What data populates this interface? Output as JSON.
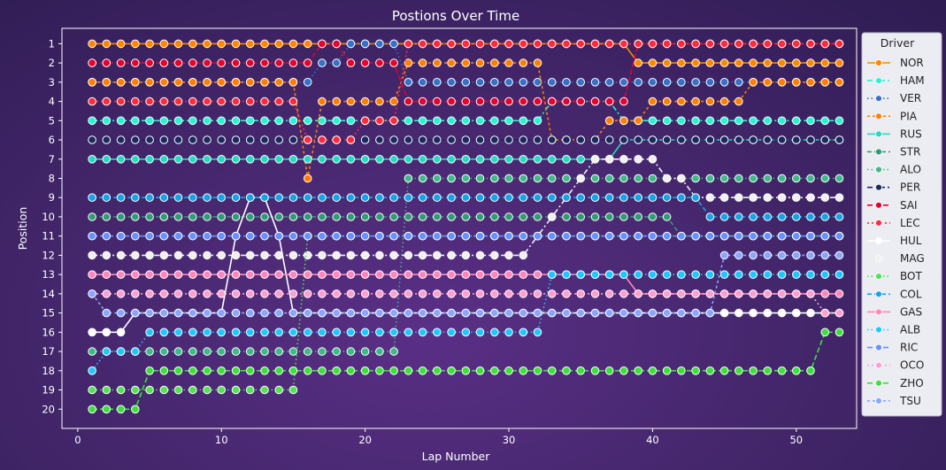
{
  "chart_data": {
    "type": "line",
    "title": "Postions Over Time",
    "xlabel": "Lap Number",
    "ylabel": "Position",
    "xlim": [
      -1.1,
      54.2
    ],
    "ylim": [
      21,
      0.2
    ],
    "y_inverted": true,
    "xticks": [
      0,
      10,
      20,
      30,
      40,
      50
    ],
    "yticks": [
      1,
      2,
      3,
      4,
      5,
      6,
      7,
      8,
      9,
      10,
      11,
      12,
      13,
      14,
      15,
      16,
      17,
      18,
      19,
      20
    ],
    "grid": false,
    "legend": {
      "title": "Driver",
      "placement": "right"
    },
    "x": [
      1,
      2,
      3,
      4,
      5,
      6,
      7,
      8,
      9,
      10,
      11,
      12,
      13,
      14,
      15,
      16,
      17,
      18,
      19,
      20,
      21,
      22,
      23,
      24,
      25,
      26,
      27,
      28,
      29,
      30,
      31,
      32,
      33,
      34,
      35,
      36,
      37,
      38,
      39,
      40,
      41,
      42,
      43,
      44,
      45,
      46,
      47,
      48,
      49,
      50,
      51,
      52,
      53
    ],
    "series": [
      {
        "name": "NOR",
        "color": "#ff8700",
        "dash": "solid",
        "values": [
          1,
          1,
          1,
          1,
          1,
          1,
          1,
          1,
          1,
          1,
          1,
          1,
          1,
          1,
          1,
          1,
          1,
          1,
          1,
          1,
          1,
          1,
          1,
          1,
          1,
          1,
          1,
          1,
          1,
          1,
          1,
          1,
          1,
          1,
          1,
          1,
          1,
          1,
          2,
          2,
          2,
          2,
          2,
          2,
          2,
          2,
          2,
          2,
          2,
          2,
          2,
          2,
          2
        ]
      },
      {
        "name": "HAM",
        "color": "#27f4d2",
        "dash": "6,3,2,3",
        "values": [
          5,
          5,
          5,
          5,
          5,
          5,
          5,
          5,
          5,
          5,
          5,
          5,
          5,
          5,
          5,
          5,
          5,
          5,
          5,
          5,
          5,
          5,
          5,
          5,
          5,
          5,
          5,
          5,
          5,
          5,
          5,
          5,
          4,
          4,
          4,
          4,
          4,
          5,
          5,
          5,
          5,
          5,
          5,
          5,
          5,
          5,
          5,
          5,
          5,
          5,
          5,
          5,
          5
        ]
      },
      {
        "name": "VER",
        "color": "#3671c6",
        "dash": "1.5,3",
        "values": [
          3,
          3,
          3,
          3,
          3,
          3,
          3,
          3,
          3,
          3,
          3,
          3,
          3,
          3,
          3,
          3,
          2,
          2,
          1,
          1,
          1,
          1,
          3,
          3,
          3,
          3,
          3,
          3,
          3,
          3,
          3,
          3,
          3,
          3,
          3,
          3,
          3,
          3,
          3,
          3,
          3,
          3,
          3,
          3,
          3,
          3,
          3,
          3,
          3,
          3,
          3,
          3,
          3
        ]
      },
      {
        "name": "PIA",
        "color": "#ff8000",
        "dash": "3,3",
        "values": [
          3,
          3,
          3,
          3,
          3,
          3,
          3,
          3,
          3,
          3,
          3,
          3,
          3,
          3,
          3,
          8,
          4,
          4,
          4,
          4,
          4,
          4,
          2,
          2,
          2,
          2,
          2,
          2,
          2,
          2,
          2,
          2,
          6,
          6,
          6,
          6,
          5,
          5,
          5,
          4,
          4,
          4,
          4,
          4,
          4,
          4,
          3,
          3,
          3,
          3,
          3,
          3,
          3
        ]
      },
      {
        "name": "RUS",
        "color": "#27d9c1",
        "dash": "solid",
        "values": [
          7,
          7,
          7,
          7,
          7,
          7,
          7,
          7,
          7,
          7,
          7,
          7,
          7,
          7,
          7,
          7,
          7,
          7,
          7,
          7,
          7,
          7,
          7,
          7,
          7,
          7,
          7,
          7,
          7,
          7,
          7,
          7,
          7,
          7,
          7,
          7,
          7,
          6,
          6,
          6,
          6,
          6,
          6,
          6,
          6,
          6,
          6,
          6,
          6,
          6,
          6,
          6,
          6
        ]
      },
      {
        "name": "STR",
        "color": "#2f9c73",
        "dash": "5,3",
        "values": [
          10,
          10,
          10,
          10,
          10,
          10,
          10,
          10,
          10,
          10,
          10,
          10,
          10,
          10,
          10,
          10,
          10,
          10,
          10,
          10,
          10,
          10,
          10,
          10,
          10,
          10,
          10,
          10,
          10,
          10,
          10,
          10,
          10,
          10,
          10,
          10,
          10,
          10,
          10,
          10,
          10,
          11,
          11,
          11,
          11,
          11,
          11,
          11,
          11,
          11,
          11,
          11,
          11
        ]
      },
      {
        "name": "ALO",
        "color": "#3eba86",
        "dash": "1.5,3",
        "values": [
          17,
          17,
          17,
          17,
          17,
          17,
          17,
          17,
          17,
          17,
          17,
          17,
          17,
          17,
          17,
          17,
          17,
          17,
          17,
          17,
          17,
          17,
          8,
          8,
          8,
          8,
          8,
          8,
          8,
          8,
          8,
          8,
          8,
          8,
          8,
          8,
          8,
          8,
          8,
          8,
          8,
          8,
          8,
          8,
          8,
          8,
          8,
          8,
          8,
          8,
          8,
          8,
          8
        ]
      },
      {
        "name": "PER",
        "color": "#1b2a5e",
        "dash": "6,3,2,3",
        "values": [
          6,
          6,
          6,
          6,
          6,
          6,
          6,
          6,
          6,
          6,
          6,
          6,
          6,
          6,
          6,
          6,
          6,
          6,
          6,
          6,
          6,
          6,
          6,
          6,
          6,
          6,
          6,
          6,
          6,
          6,
          6,
          6,
          6,
          6,
          6,
          6,
          6,
          6,
          6,
          6,
          6,
          6,
          6,
          6,
          6,
          6,
          6,
          6,
          6,
          6,
          6,
          6,
          6
        ]
      },
      {
        "name": "SAI",
        "color": "#e8002d",
        "dash": "6,3",
        "values": [
          2,
          2,
          2,
          2,
          2,
          2,
          2,
          2,
          2,
          2,
          2,
          2,
          2,
          2,
          2,
          2,
          1,
          1,
          2,
          2,
          2,
          2,
          4,
          4,
          4,
          4,
          4,
          4,
          4,
          4,
          4,
          4,
          4,
          4,
          4,
          4,
          4,
          4,
          1,
          1,
          1,
          1,
          1,
          1,
          1,
          1,
          1,
          1,
          1,
          1,
          1,
          1,
          1
        ]
      },
      {
        "name": "LEC",
        "color": "#ff2b3d",
        "dash": "2,3",
        "values": [
          4,
          4,
          4,
          4,
          4,
          4,
          4,
          4,
          4,
          4,
          4,
          4,
          4,
          4,
          4,
          6,
          6,
          6,
          6,
          5,
          5,
          5,
          1,
          1,
          1,
          1,
          1,
          1,
          1,
          1,
          1,
          1,
          1,
          1,
          1,
          1,
          1,
          1,
          1,
          1,
          1,
          1,
          1,
          1,
          1,
          1,
          1,
          1,
          1,
          1,
          1,
          1,
          1
        ]
      },
      {
        "name": "HUL",
        "color": "#ffffff",
        "dash": "solid",
        "values": [
          16,
          16,
          16,
          15,
          15,
          15,
          15,
          15,
          15,
          15,
          11,
          9,
          9,
          11,
          15,
          15,
          15,
          15,
          15,
          15,
          15,
          15,
          15,
          15,
          15,
          15,
          15,
          15,
          15,
          15,
          15,
          15,
          15,
          15,
          15,
          15,
          15,
          15,
          15,
          15,
          15,
          15,
          15,
          15,
          15,
          15,
          15,
          15,
          15,
          15,
          15,
          15,
          15
        ]
      },
      {
        "name": "MAG",
        "color": "#f0f0f0",
        "dash": "6,3,2,3",
        "values": [
          12,
          12,
          12,
          12,
          12,
          12,
          12,
          12,
          12,
          12,
          12,
          12,
          12,
          12,
          12,
          12,
          12,
          12,
          12,
          12,
          12,
          12,
          12,
          12,
          12,
          12,
          12,
          12,
          12,
          12,
          12,
          11,
          10,
          9,
          8,
          7,
          7,
          7,
          7,
          7,
          8,
          8,
          9,
          9,
          9,
          9,
          9,
          9,
          9,
          9,
          9,
          9,
          9
        ]
      },
      {
        "name": "BOT",
        "color": "#52e252",
        "dash": "1.5,3",
        "values": [
          19,
          19,
          19,
          19,
          19,
          19,
          19,
          19,
          19,
          19,
          19,
          19,
          19,
          19,
          19,
          11,
          11,
          11,
          11,
          11,
          11,
          11,
          11,
          11,
          11,
          11,
          11,
          11,
          11,
          11,
          11,
          11,
          11,
          11,
          11,
          11,
          11,
          11,
          11,
          11,
          11,
          11,
          11,
          11,
          11,
          11,
          11,
          11,
          11,
          11,
          11,
          11,
          11
        ]
      },
      {
        "name": "COL",
        "color": "#12a4e6",
        "dash": "5,3",
        "values": [
          9,
          9,
          9,
          9,
          9,
          9,
          9,
          9,
          9,
          9,
          9,
          9,
          9,
          9,
          9,
          9,
          9,
          9,
          9,
          9,
          9,
          9,
          9,
          9,
          9,
          9,
          9,
          9,
          9,
          9,
          9,
          9,
          9,
          9,
          9,
          9,
          9,
          9,
          9,
          9,
          9,
          9,
          9,
          10,
          10,
          10,
          10,
          10,
          10,
          10,
          10,
          10,
          10
        ]
      },
      {
        "name": "GAS",
        "color": "#ff87bc",
        "dash": "solid",
        "values": [
          13,
          13,
          13,
          13,
          13,
          13,
          13,
          13,
          13,
          13,
          13,
          13,
          13,
          13,
          13,
          13,
          13,
          13,
          13,
          13,
          13,
          13,
          13,
          13,
          13,
          13,
          13,
          13,
          13,
          13,
          13,
          13,
          13,
          13,
          13,
          13,
          13,
          13,
          14,
          14,
          14,
          14,
          14,
          14,
          14,
          14,
          14,
          14,
          14,
          14,
          14,
          14,
          14
        ]
      },
      {
        "name": "ALB",
        "color": "#1ec8ff",
        "dash": "1.5,3",
        "values": [
          18,
          17,
          17,
          17,
          16,
          16,
          16,
          16,
          16,
          16,
          16,
          16,
          16,
          16,
          16,
          16,
          16,
          16,
          16,
          16,
          16,
          16,
          16,
          16,
          16,
          16,
          16,
          16,
          16,
          16,
          16,
          16,
          13,
          13,
          13,
          13,
          13,
          13,
          13,
          13,
          13,
          13,
          13,
          13,
          13,
          13,
          13,
          13,
          13,
          13,
          13,
          13,
          13
        ]
      },
      {
        "name": "RIC",
        "color": "#6692ff",
        "dash": "6,3",
        "values": [
          11,
          11,
          11,
          11,
          11,
          11,
          11,
          11,
          11,
          11,
          11,
          11,
          11,
          11,
          11,
          11,
          11,
          11,
          11,
          11,
          11,
          11,
          11,
          11,
          11,
          11,
          11,
          11,
          11,
          11,
          11,
          11,
          11,
          11,
          11,
          11,
          11,
          11,
          11,
          11,
          11,
          11,
          11,
          11,
          11,
          11,
          11,
          11,
          11,
          11,
          11,
          11,
          11
        ]
      },
      {
        "name": "OCO",
        "color": "#ff9fd1",
        "dash": "2,3",
        "values": [
          14,
          14,
          14,
          14,
          14,
          14,
          14,
          14,
          14,
          14,
          14,
          14,
          14,
          14,
          14,
          14,
          14,
          14,
          14,
          14,
          14,
          14,
          14,
          14,
          14,
          14,
          14,
          14,
          14,
          14,
          14,
          14,
          14,
          14,
          14,
          14,
          14,
          14,
          14,
          14,
          14,
          14,
          14,
          14,
          14,
          14,
          14,
          14,
          14,
          14,
          14,
          15,
          15
        ]
      },
      {
        "name": "ZHO",
        "color": "#3be03b",
        "dash": "6,3",
        "values": [
          20,
          20,
          20,
          20,
          18,
          18,
          18,
          18,
          18,
          18,
          18,
          18,
          18,
          18,
          18,
          18,
          18,
          18,
          18,
          18,
          18,
          18,
          18,
          18,
          18,
          18,
          18,
          18,
          18,
          18,
          18,
          18,
          18,
          18,
          18,
          18,
          18,
          18,
          18,
          18,
          18,
          18,
          18,
          18,
          18,
          18,
          18,
          18,
          18,
          18,
          18,
          16,
          16
        ]
      },
      {
        "name": "TSU",
        "color": "#8aa6ff",
        "dash": "3,3",
        "values": [
          14,
          15,
          15,
          15,
          15,
          15,
          15,
          15,
          15,
          15,
          15,
          15,
          15,
          15,
          15,
          15,
          15,
          15,
          15,
          15,
          15,
          15,
          15,
          15,
          15,
          15,
          15,
          15,
          15,
          15,
          15,
          15,
          15,
          15,
          15,
          15,
          15,
          15,
          15,
          15,
          15,
          15,
          15,
          15,
          12,
          12,
          12,
          12,
          12,
          12,
          12,
          12,
          12
        ]
      }
    ]
  }
}
